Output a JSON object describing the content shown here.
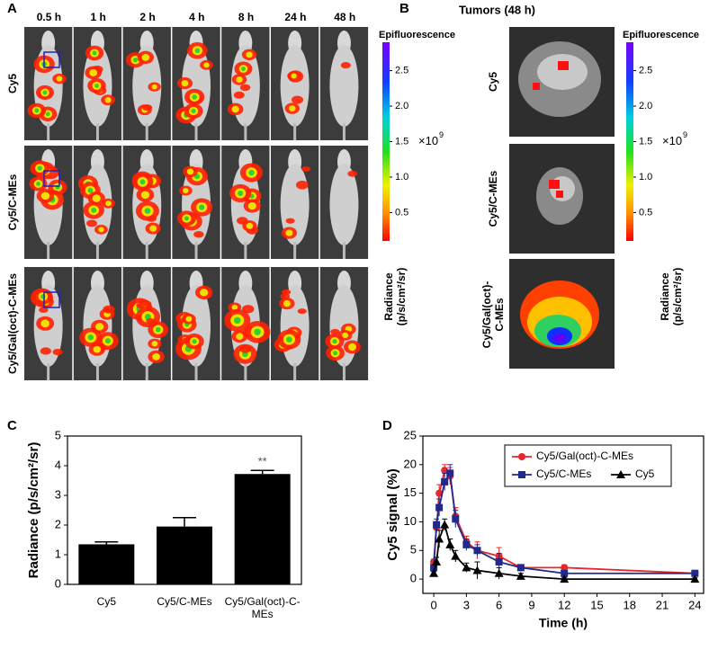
{
  "panel_labels": [
    "A",
    "B",
    "C",
    "D"
  ],
  "panel_a": {
    "time_labels": [
      "0.5 h",
      "1 h",
      "2 h",
      "4 h",
      "8 h",
      "24 h",
      "48 h"
    ],
    "row_labels": [
      "Cy5",
      "Cy5/C-MEs",
      "Cy5/Gal(oct)-C-MEs"
    ],
    "colorbar": {
      "title": "Epifluorescence",
      "lim": [
        0.1,
        2.9
      ],
      "ticks": [
        {
          "value": 0.5,
          "label": "0.5"
        },
        {
          "value": 1.0,
          "label": "1.0"
        },
        {
          "value": 1.5,
          "label": "1.5"
        },
        {
          "value": 2.0,
          "label": "2.0"
        },
        {
          "value": 2.5,
          "label": "2.5"
        }
      ],
      "multiplier": "×10",
      "exponent": "9",
      "unit_label": [
        "Radiance",
        "(p/s/cm²/sr)"
      ]
    }
  },
  "panel_b": {
    "title": "Tumors (48 h)",
    "row_labels": [
      "Cy5",
      "Cy5/C-MEs",
      "Cy5/Gal(oct)-C-MEs"
    ],
    "colorbar": {
      "title": "Epifluorescence",
      "lim": [
        0.1,
        2.9
      ],
      "ticks": [
        {
          "value": 0.5,
          "label": "0.5"
        },
        {
          "value": 1.0,
          "label": "1.0"
        },
        {
          "value": 1.5,
          "label": "1.5"
        },
        {
          "value": 2.0,
          "label": "2.0"
        },
        {
          "value": 2.5,
          "label": "2.5"
        }
      ],
      "multiplier": "×10",
      "exponent": "9",
      "unit_label": [
        "Radiance",
        "(p/s/cm²/sr)"
      ]
    }
  },
  "chart_data": [
    {
      "type": "bar",
      "ylabel": "Radiance (p/s/cm²/sr)",
      "categories": [
        "Cy5",
        "Cy5/C-MEs",
        "Cy5/Gal(oct)-C-MEs"
      ],
      "values": [
        1.35,
        1.95,
        3.72
      ],
      "errors": [
        0.08,
        0.3,
        0.12
      ],
      "color": "#000000",
      "annotations": [
        null,
        null,
        "**"
      ],
      "ylim": [
        0,
        5
      ],
      "yticks": [
        0,
        1,
        2,
        3,
        4,
        5
      ]
    },
    {
      "type": "line",
      "xlabel": "Time (h)",
      "ylabel": "Cy5 signal (%)",
      "x": [
        0,
        0.25,
        0.5,
        1,
        1.5,
        2,
        3,
        4,
        6,
        8,
        12,
        24
      ],
      "series": [
        {
          "name": "Cy5/Gal(oct)-C-MEs",
          "color": "#e8262b",
          "marker": "circle",
          "values": [
            3,
            9,
            15,
            19,
            18,
            11,
            6.5,
            5,
            4,
            2,
            2,
            1
          ],
          "errors": [
            0.5,
            1,
            1.5,
            1,
            1.5,
            1.5,
            1,
            1.5,
            1.5,
            0.5,
            0.5,
            0.3
          ]
        },
        {
          "name": "Cy5/C-MEs",
          "color": "#1f2a8c",
          "marker": "square",
          "values": [
            2,
            9.5,
            12.5,
            17,
            18.5,
            10.5,
            6,
            5,
            3,
            2,
            1,
            1
          ],
          "errors": [
            0.5,
            1,
            1.5,
            1.5,
            1.5,
            1.5,
            1,
            1,
            1.5,
            0.5,
            0.3,
            0.3
          ]
        },
        {
          "name": "Cy5",
          "color": "#000000",
          "marker": "triangle",
          "values": [
            1,
            3,
            7,
            9.5,
            6,
            4,
            2,
            1.5,
            1,
            0.5,
            0,
            0
          ],
          "errors": [
            0.3,
            0.8,
            1.5,
            1,
            1,
            1,
            0.8,
            1.5,
            1,
            0.5,
            0.3,
            0.2
          ]
        }
      ],
      "xlim": [
        -1,
        24.8
      ],
      "xticks": [
        0,
        3,
        6,
        9,
        12,
        15,
        18,
        21,
        24
      ],
      "ylim": [
        -2.5,
        25
      ],
      "yticks": [
        0,
        5,
        10,
        15,
        20,
        25
      ],
      "legend": "upper right"
    }
  ]
}
